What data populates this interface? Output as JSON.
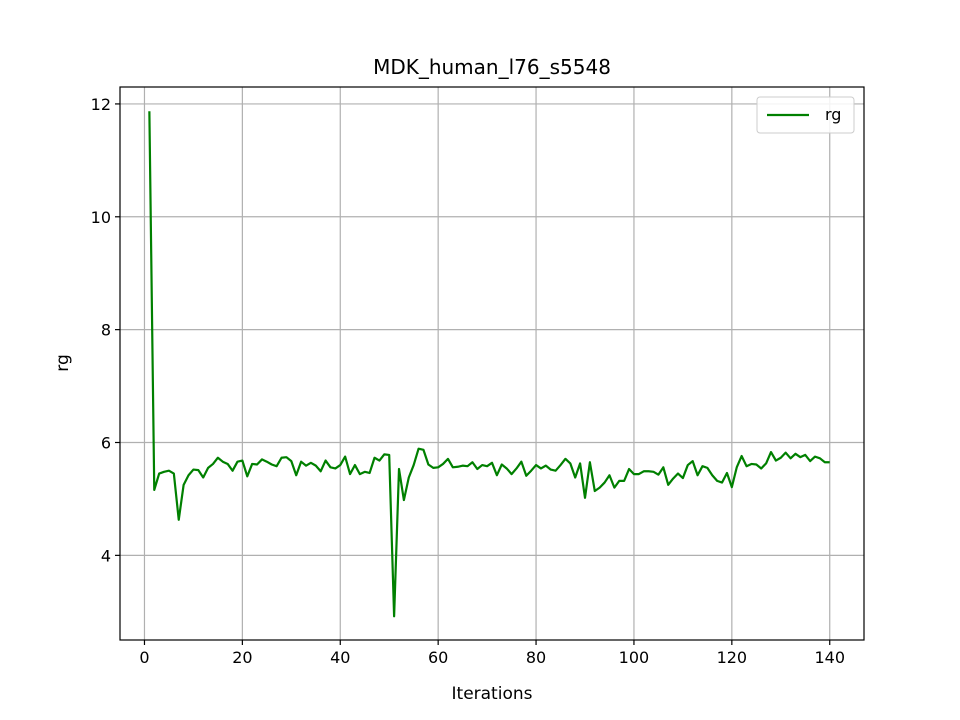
{
  "chart_data": {
    "type": "line",
    "title": "MDK_human_l76_s5548",
    "xlabel": "Iterations",
    "ylabel": "rg",
    "xlim": [
      -5,
      147
    ],
    "ylim": [
      2.5,
      12.3
    ],
    "xticks": [
      0,
      20,
      40,
      60,
      80,
      100,
      120,
      140
    ],
    "yticks": [
      4,
      6,
      8,
      10,
      12
    ],
    "grid": true,
    "legend_position": "top-right",
    "series": [
      {
        "name": "rg",
        "color": "#008000",
        "x": [
          1,
          2,
          3,
          4,
          5,
          6,
          7,
          8,
          9,
          10,
          11,
          12,
          13,
          14,
          15,
          16,
          17,
          18,
          19,
          20,
          21,
          22,
          23,
          24,
          25,
          26,
          27,
          28,
          29,
          30,
          31,
          32,
          33,
          34,
          35,
          36,
          37,
          38,
          39,
          40,
          41,
          42,
          43,
          44,
          45,
          46,
          47,
          48,
          49,
          50,
          51,
          52,
          53,
          54,
          55,
          56,
          57,
          58,
          59,
          60,
          61,
          62,
          63,
          64,
          65,
          66,
          67,
          68,
          69,
          70,
          71,
          72,
          73,
          74,
          75,
          76,
          77,
          78,
          79,
          80,
          81,
          82,
          83,
          84,
          85,
          86,
          87,
          88,
          89,
          90,
          91,
          92,
          93,
          94,
          95,
          96,
          97,
          98,
          99,
          100,
          101,
          102,
          103,
          104,
          105,
          106,
          107,
          108,
          109,
          110,
          111,
          112,
          113,
          114,
          115,
          116,
          117,
          118,
          119,
          120,
          121,
          122,
          123,
          124,
          125,
          126,
          127,
          128,
          129,
          130,
          131,
          132,
          133,
          134,
          135,
          136,
          137,
          138,
          139,
          140
        ],
        "values": [
          11.87,
          5.16,
          5.45,
          5.48,
          5.5,
          5.45,
          4.63,
          5.25,
          5.42,
          5.52,
          5.51,
          5.38,
          5.55,
          5.62,
          5.73,
          5.66,
          5.62,
          5.5,
          5.66,
          5.68,
          5.4,
          5.62,
          5.61,
          5.7,
          5.66,
          5.61,
          5.58,
          5.73,
          5.74,
          5.67,
          5.42,
          5.66,
          5.59,
          5.64,
          5.59,
          5.49,
          5.68,
          5.56,
          5.54,
          5.6,
          5.75,
          5.44,
          5.6,
          5.44,
          5.48,
          5.46,
          5.73,
          5.68,
          5.79,
          5.78,
          2.92,
          5.53,
          4.98,
          5.38,
          5.6,
          5.89,
          5.87,
          5.61,
          5.55,
          5.56,
          5.62,
          5.71,
          5.56,
          5.57,
          5.59,
          5.58,
          5.65,
          5.53,
          5.6,
          5.58,
          5.64,
          5.42,
          5.61,
          5.54,
          5.44,
          5.54,
          5.66,
          5.41,
          5.5,
          5.6,
          5.54,
          5.59,
          5.52,
          5.5,
          5.6,
          5.71,
          5.63,
          5.38,
          5.63,
          5.02,
          5.65,
          5.14,
          5.2,
          5.29,
          5.42,
          5.2,
          5.32,
          5.32,
          5.53,
          5.44,
          5.44,
          5.49,
          5.49,
          5.48,
          5.43,
          5.56,
          5.25,
          5.36,
          5.45,
          5.37,
          5.6,
          5.67,
          5.42,
          5.58,
          5.55,
          5.42,
          5.32,
          5.29,
          5.46,
          5.21,
          5.56,
          5.76,
          5.58,
          5.62,
          5.61,
          5.54,
          5.63,
          5.83,
          5.68,
          5.73,
          5.82,
          5.72,
          5.8,
          5.74,
          5.78,
          5.67,
          5.75,
          5.72,
          5.65,
          5.65
        ]
      }
    ]
  }
}
